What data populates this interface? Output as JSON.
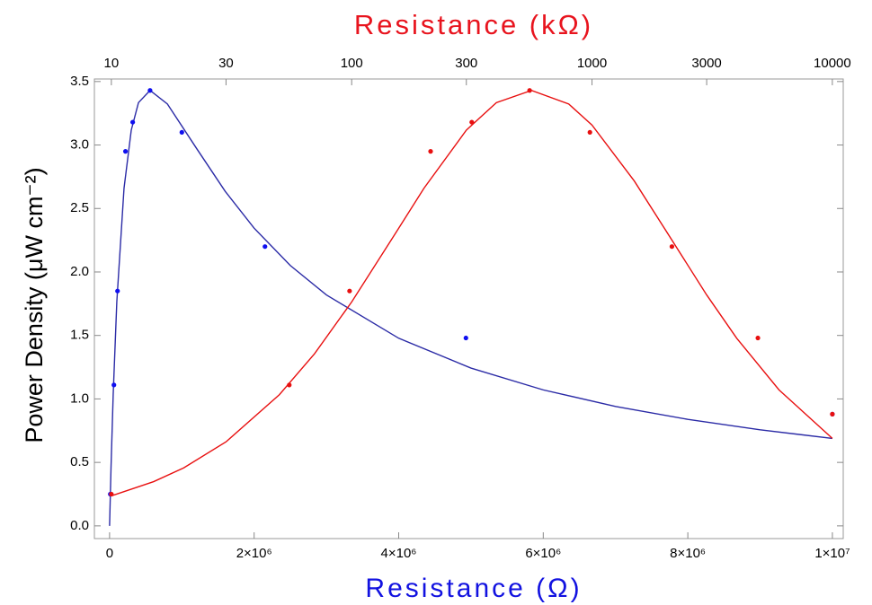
{
  "chart_data": {
    "type": "scatter",
    "title": "Resistance (kΩ)",
    "xlabel": "Resistance (Ω)",
    "ylabel": "Power Density (μW cm⁻²)",
    "xlim": [
      -210000,
      10150000
    ],
    "xticks": [
      0,
      {
        "value": 2000000,
        "label": "2×10⁶"
      },
      {
        "value": 4000000,
        "label": "4×10⁶"
      },
      {
        "value": 6000000,
        "label": "6×10⁶"
      },
      {
        "value": 8000000,
        "label": "8×10⁶"
      },
      {
        "value": 10000000,
        "label": "1×10⁷"
      }
    ],
    "x2lim": [
      8.5,
      11100
    ],
    "x2log": true,
    "x2ticks": [
      10,
      30,
      100,
      300,
      1000,
      3000,
      10000
    ],
    "ylim": [
      -0.1,
      3.52
    ],
    "yticks": [
      {
        "value": 0,
        "label": "0.0"
      },
      {
        "value": 0.5,
        "label": "0.5"
      },
      {
        "value": 1,
        "label": "1.0"
      },
      {
        "value": 1.5,
        "label": "1.5"
      },
      {
        "value": 2,
        "label": "2.0"
      },
      {
        "value": 2.5,
        "label": "2.5"
      },
      {
        "value": 3,
        "label": "3.0"
      },
      {
        "value": 3.5,
        "label": "3.5"
      }
    ],
    "title_color": "#e8141e",
    "xlabel_color": "#1212e0",
    "curves": [
      {
        "color": "#2b2ba6",
        "axis": "x",
        "x": [
          0,
          20000,
          50000,
          100000,
          200000,
          300000,
          400000,
          560000,
          800000,
          1200000,
          1600000,
          2000000,
          2500000,
          3000000,
          4000000,
          5000000,
          6000000,
          7000000,
          8000000,
          9000000,
          10000000
        ],
        "values": [
          0,
          0.457,
          1.033,
          1.764,
          2.66,
          3.117,
          3.334,
          3.43,
          3.323,
          2.976,
          2.635,
          2.345,
          2.051,
          1.819,
          1.478,
          1.243,
          1.071,
          0.941,
          0.839,
          0.757,
          0.689
        ]
      },
      {
        "color": "#e81010",
        "axis": "x2",
        "x": [
          10,
          15,
          20,
          30,
          50,
          70,
          100,
          150,
          200,
          300,
          400,
          560,
          800,
          1000,
          1500,
          2000,
          3000,
          4000,
          6000,
          10000
        ],
        "values": [
          0.2365,
          0.3486,
          0.457,
          0.662,
          1.033,
          1.355,
          1.764,
          2.286,
          2.66,
          3.117,
          3.334,
          3.43,
          3.323,
          3.157,
          2.716,
          2.345,
          1.819,
          1.478,
          1.071,
          0.689
        ]
      }
    ],
    "points": [
      {
        "color": "#1010f0",
        "axis": "x",
        "x": [
          10000,
          60000,
          110000,
          220000,
          320000,
          560000,
          1000000,
          2150000,
          4930000,
          10000000
        ],
        "values": [
          0.25,
          1.11,
          1.85,
          2.95,
          3.18,
          3.43,
          3.1,
          2.2,
          1.48,
          0.88
        ]
      },
      {
        "color": "#e81010",
        "axis": "x2",
        "x": [
          10,
          55,
          98,
          213,
          316,
          550,
          980,
          2150,
          4900,
          10000
        ],
        "values": [
          0.25,
          1.11,
          1.85,
          2.95,
          3.18,
          3.43,
          3.1,
          2.2,
          1.48,
          0.88
        ]
      }
    ]
  }
}
